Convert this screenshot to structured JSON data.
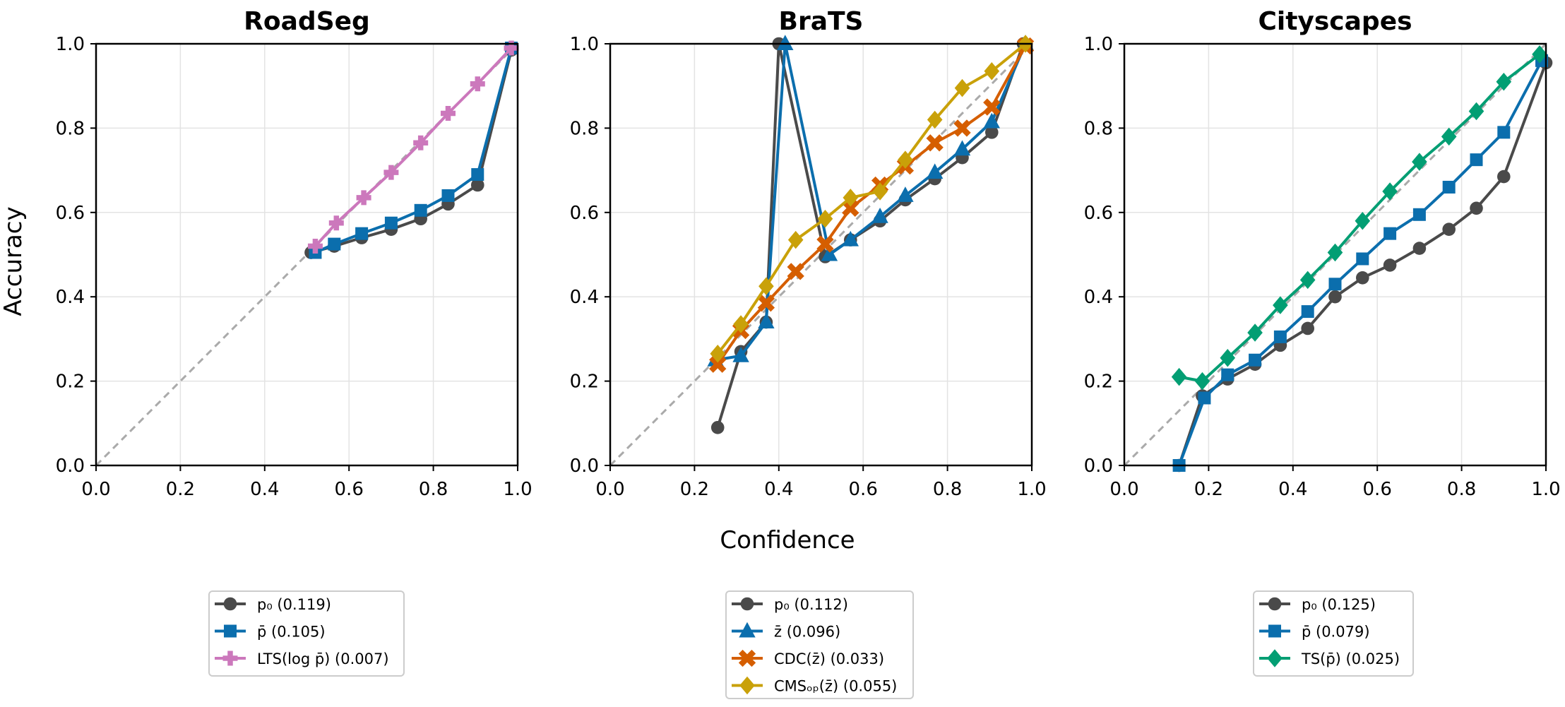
{
  "figure": {
    "ylabel": "Accuracy",
    "xlabel": "Confidence"
  },
  "chart_data": [
    {
      "type": "line",
      "title": "RoadSeg",
      "xlim": [
        0,
        1
      ],
      "ylim": [
        0,
        1
      ],
      "xticks": [
        "0.0",
        "0.2",
        "0.4",
        "0.6",
        "0.8",
        "1.0"
      ],
      "yticks": [
        "0.0",
        "0.2",
        "0.4",
        "0.6",
        "0.8",
        "1.0"
      ],
      "grid": true,
      "diagonal_reference": true,
      "legend_position": "below",
      "series": [
        {
          "name": "p₀ (0.119)",
          "color": "#4a4a4a",
          "marker": "circle",
          "x": [
            0.51,
            0.565,
            0.63,
            0.7,
            0.77,
            0.835,
            0.905,
            0.985
          ],
          "y": [
            0.505,
            0.52,
            0.54,
            0.56,
            0.585,
            0.62,
            0.665,
            0.985
          ]
        },
        {
          "name": "p̄ (0.105)",
          "color": "#0b6ead",
          "marker": "square",
          "x": [
            0.52,
            0.565,
            0.63,
            0.7,
            0.77,
            0.835,
            0.905,
            0.985
          ],
          "y": [
            0.505,
            0.525,
            0.55,
            0.575,
            0.605,
            0.64,
            0.69,
            0.99
          ]
        },
        {
          "name": "LTS(log p̄) (0.007)",
          "color": "#cc78bc",
          "marker": "plus",
          "x": [
            0.52,
            0.57,
            0.635,
            0.7,
            0.77,
            0.835,
            0.905,
            0.985
          ],
          "y": [
            0.52,
            0.575,
            0.635,
            0.695,
            0.765,
            0.835,
            0.905,
            0.99
          ]
        }
      ]
    },
    {
      "type": "line",
      "title": "BraTS",
      "xlim": [
        0,
        1
      ],
      "ylim": [
        0,
        1
      ],
      "xticks": [
        "0.0",
        "0.2",
        "0.4",
        "0.6",
        "0.8",
        "1.0"
      ],
      "yticks": [
        "0.0",
        "0.2",
        "0.4",
        "0.6",
        "0.8",
        "1.0"
      ],
      "grid": true,
      "diagonal_reference": true,
      "legend_position": "below",
      "series": [
        {
          "name": "p₀ (0.112)",
          "color": "#4a4a4a",
          "marker": "circle",
          "x": [
            0.255,
            0.31,
            0.37,
            0.4,
            0.51,
            0.57,
            0.64,
            0.7,
            0.77,
            0.835,
            0.905,
            0.98
          ],
          "y": [
            0.09,
            0.27,
            0.34,
            1.0,
            0.495,
            0.535,
            0.58,
            0.63,
            0.68,
            0.73,
            0.79,
            1.0
          ]
        },
        {
          "name": "z̄ (0.096)",
          "color": "#0b6ead",
          "marker": "triangle",
          "x": [
            0.25,
            0.31,
            0.37,
            0.415,
            0.52,
            0.57,
            0.64,
            0.7,
            0.77,
            0.835,
            0.905,
            0.985
          ],
          "y": [
            0.25,
            0.26,
            0.34,
            1.0,
            0.5,
            0.535,
            0.59,
            0.64,
            0.695,
            0.75,
            0.815,
            1.0
          ]
        },
        {
          "name": "CDC(z̄) (0.033)",
          "color": "#d55e00",
          "marker": "x",
          "x": [
            0.255,
            0.31,
            0.37,
            0.44,
            0.51,
            0.57,
            0.64,
            0.7,
            0.77,
            0.835,
            0.905,
            0.985
          ],
          "y": [
            0.24,
            0.32,
            0.385,
            0.46,
            0.525,
            0.61,
            0.665,
            0.71,
            0.765,
            0.8,
            0.85,
            0.995
          ]
        },
        {
          "name": "CMSₒₚ(z̄) (0.055)",
          "color": "#c9a109",
          "marker": "diamond",
          "x": [
            0.255,
            0.31,
            0.37,
            0.44,
            0.51,
            0.57,
            0.64,
            0.7,
            0.77,
            0.835,
            0.905,
            0.985
          ],
          "y": [
            0.265,
            0.335,
            0.425,
            0.535,
            0.585,
            0.635,
            0.65,
            0.725,
            0.82,
            0.895,
            0.935,
            1.0
          ]
        }
      ]
    },
    {
      "type": "line",
      "title": "Cityscapes",
      "xlim": [
        0,
        1
      ],
      "ylim": [
        0,
        1
      ],
      "xticks": [
        "0.0",
        "0.2",
        "0.4",
        "0.6",
        "0.8",
        "1.0"
      ],
      "yticks": [
        "0.0",
        "0.2",
        "0.4",
        "0.6",
        "0.8",
        "1.0"
      ],
      "grid": true,
      "diagonal_reference": true,
      "legend_position": "below",
      "series": [
        {
          "name": "p₀ (0.125)",
          "color": "#4a4a4a",
          "marker": "circle",
          "x": [
            0.13,
            0.185,
            0.245,
            0.31,
            0.37,
            0.435,
            0.5,
            0.565,
            0.63,
            0.7,
            0.77,
            0.835,
            0.9,
            1.0
          ],
          "y": [
            0.0,
            0.165,
            0.205,
            0.24,
            0.285,
            0.325,
            0.4,
            0.445,
            0.475,
            0.515,
            0.56,
            0.61,
            0.685,
            0.955
          ]
        },
        {
          "name": "p̄ (0.079)",
          "color": "#0b6ead",
          "marker": "square",
          "x": [
            0.13,
            0.19,
            0.245,
            0.31,
            0.37,
            0.435,
            0.5,
            0.565,
            0.63,
            0.7,
            0.77,
            0.835,
            0.9,
            0.99
          ],
          "y": [
            0.0,
            0.16,
            0.215,
            0.25,
            0.305,
            0.365,
            0.43,
            0.49,
            0.55,
            0.595,
            0.66,
            0.725,
            0.79,
            0.96
          ]
        },
        {
          "name": "TS(p̄) (0.025)",
          "color": "#029e73",
          "marker": "diamond",
          "x": [
            0.13,
            0.185,
            0.245,
            0.31,
            0.37,
            0.435,
            0.5,
            0.565,
            0.63,
            0.7,
            0.77,
            0.835,
            0.9,
            0.985
          ],
          "y": [
            0.21,
            0.2,
            0.255,
            0.315,
            0.38,
            0.44,
            0.505,
            0.58,
            0.65,
            0.72,
            0.78,
            0.84,
            0.91,
            0.975
          ]
        }
      ]
    }
  ]
}
